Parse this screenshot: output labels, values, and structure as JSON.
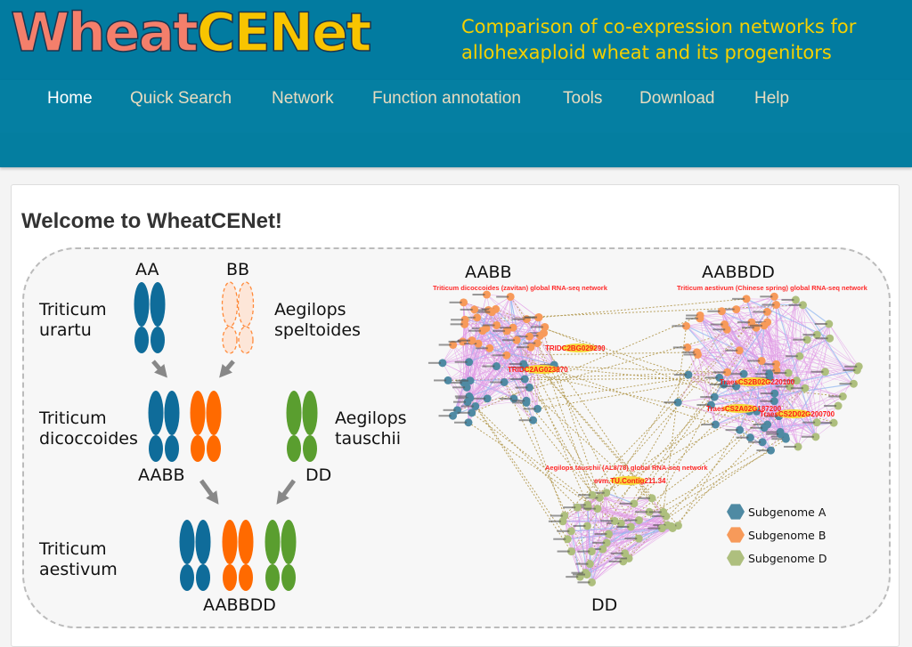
{
  "header": {
    "logo_text": "WheatCENet",
    "tagline_line1": "Comparison of co-expression networks for",
    "tagline_line2": "allohexaploid wheat and its progenitors"
  },
  "nav": {
    "items": [
      {
        "label": "Home",
        "active": true
      },
      {
        "label": "Quick Search"
      },
      {
        "label": "Network"
      },
      {
        "label": "Function annotation"
      },
      {
        "label": "Tools"
      },
      {
        "label": "Download"
      },
      {
        "label": "Help"
      }
    ]
  },
  "main": {
    "title": "Welcome to WheatCENet!"
  },
  "figure": {
    "species": {
      "urartu": [
        "Triticum",
        "urartu"
      ],
      "speltoides": [
        "Aegilops",
        "speltoides"
      ],
      "dicoccoides": [
        "Triticum",
        "dicoccoides"
      ],
      "tauschii": [
        "Aegilops",
        "tauschii"
      ],
      "aestivum": [
        "Triticum",
        "aestivum"
      ]
    },
    "genomes": {
      "aa": "AA",
      "bb": "BB",
      "aabb": "AABB",
      "dd": "DD",
      "aabbdd": "AABBDD"
    },
    "network": {
      "aabb_title": "AABB",
      "aabbdd_title": "AABBDD",
      "dd_title": "DD",
      "aabb_subtitle": "Triticum dicoccoides (zavitan) global RNA-seq network",
      "aabbdd_subtitle": "Triticum aestivum (Chinese spring) global RNA-seq network",
      "dd_subtitle": "Aegilops tauschii (AL8/78) global RNA-seq network",
      "highlights": [
        "TRIDC2BG029290",
        "TRIDC2AG023870",
        "TraesCS2B02G220100",
        "TraesCS2A02G187200",
        "TraesCS2D02G200700",
        "evm.TU.Contig211.34"
      ]
    },
    "legend": [
      {
        "label": "Subgenome A",
        "color": "#4f8aa3"
      },
      {
        "label": "Subgenome B",
        "color": "#f79a5a"
      },
      {
        "label": "Subgenome D",
        "color": "#aebf7e"
      }
    ]
  },
  "colors": {
    "header": "#027ba0",
    "chrom_a": "#0f6c9a",
    "chrom_b": "#ff6a00",
    "chrom_d": "#5a9e2f",
    "edge_intra": "#e19be6",
    "edge_inter": "#b9a260",
    "highlight_text": "#ff2020"
  }
}
